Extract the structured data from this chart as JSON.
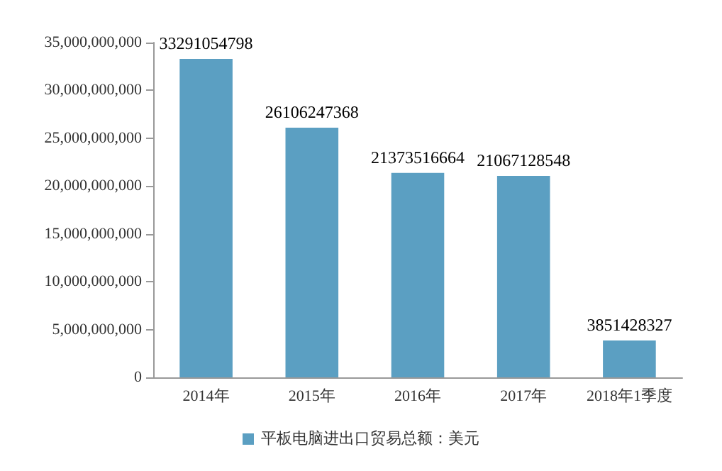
{
  "chart_data": {
    "type": "bar",
    "categories": [
      "2014年",
      "2015年",
      "2016年",
      "2017年",
      "2018年1季度"
    ],
    "series": [
      {
        "name": "平板电脑进出口贸易总额：美元",
        "color": "#5b9fc2",
        "values": [
          33291054798,
          26106247368,
          21373516664,
          21067128548,
          3851428327
        ]
      }
    ],
    "ylim": [
      0,
      35000000000
    ],
    "yticks": [
      {
        "value": 0,
        "label": "0"
      },
      {
        "value": 5000000000,
        "label": "5,000,000,000"
      },
      {
        "value": 10000000000,
        "label": "10,000,000,000"
      },
      {
        "value": 15000000000,
        "label": "15,000,000,000"
      },
      {
        "value": 20000000000,
        "label": "20,000,000,000"
      },
      {
        "value": 25000000000,
        "label": "25,000,000,000"
      },
      {
        "value": 30000000000,
        "label": "30,000,000,000"
      },
      {
        "value": 35000000000,
        "label": "35,000,000,000"
      }
    ],
    "data_labels": true,
    "legend": "bottom",
    "grid": false
  }
}
